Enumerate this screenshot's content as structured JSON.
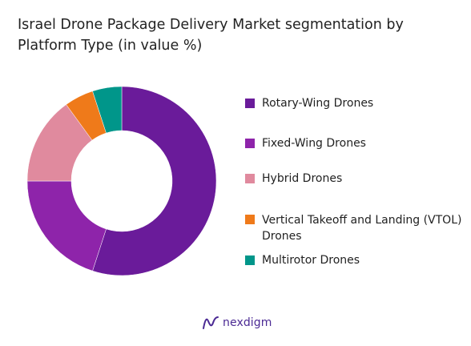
{
  "chart_data": {
    "type": "pie",
    "title": "Israel Drone Package Delivery Market segmentation by Platform Type (in value %)",
    "donut": true,
    "categories": [
      "Rotary-Wing Drones",
      "Fixed-Wing Drones",
      "Hybrid Drones",
      "Vertical Takeoff and Landing (VTOL) Drones",
      "Multirotor Drones"
    ],
    "values": [
      55,
      20,
      15,
      5,
      5
    ],
    "colors": [
      "#6a1b9a",
      "#8e24aa",
      "#e08a9e",
      "#ef7a1a",
      "#00968a"
    ],
    "legend": "right"
  },
  "logo": {
    "text": "nexdigm"
  }
}
